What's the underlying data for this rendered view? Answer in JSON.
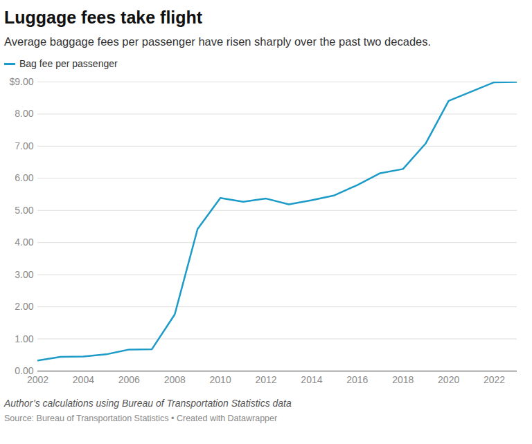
{
  "chart_data": {
    "type": "line",
    "title": "Luggage fees take flight",
    "subtitle": "Average baggage fees per passenger have risen sharply over the past two decades.",
    "notes": "Author’s calculations using Bureau of Transportation Statistics data",
    "source": "Source: Bureau of Transportation Statistics • Created with Datawrapper",
    "x": [
      2002,
      2003,
      2004,
      2005,
      2006,
      2007,
      2008,
      2009,
      2010,
      2011,
      2012,
      2013,
      2014,
      2015,
      2016,
      2017,
      2018,
      2019,
      2020,
      2021,
      2022,
      2023
    ],
    "series": [
      {
        "name": "Bag fee per passenger",
        "color": "#1d9bc8",
        "values": [
          0.33,
          0.44,
          0.45,
          0.52,
          0.67,
          0.68,
          1.76,
          4.42,
          5.39,
          5.27,
          5.37,
          5.19,
          5.32,
          5.47,
          5.79,
          6.16,
          6.29,
          7.09,
          8.41,
          8.7,
          8.99,
          9.0
        ]
      }
    ],
    "xlim": [
      2002,
      2023
    ],
    "xticks": [
      2002,
      2004,
      2006,
      2008,
      2010,
      2012,
      2014,
      2016,
      2018,
      2020,
      2022
    ],
    "ylim": [
      0,
      9
    ],
    "yticks": [
      {
        "value": 0,
        "label": "0.00"
      },
      {
        "value": 1,
        "label": "1.00"
      },
      {
        "value": 2,
        "label": "2.00"
      },
      {
        "value": 3,
        "label": "3.00"
      },
      {
        "value": 4,
        "label": "4.00"
      },
      {
        "value": 5,
        "label": "5.00"
      },
      {
        "value": 6,
        "label": "6.00"
      },
      {
        "value": 7,
        "label": "7.00"
      },
      {
        "value": 8,
        "label": "8.00"
      },
      {
        "value": 9,
        "label": "$9.00"
      }
    ],
    "grid": true,
    "legend": "top-left"
  }
}
